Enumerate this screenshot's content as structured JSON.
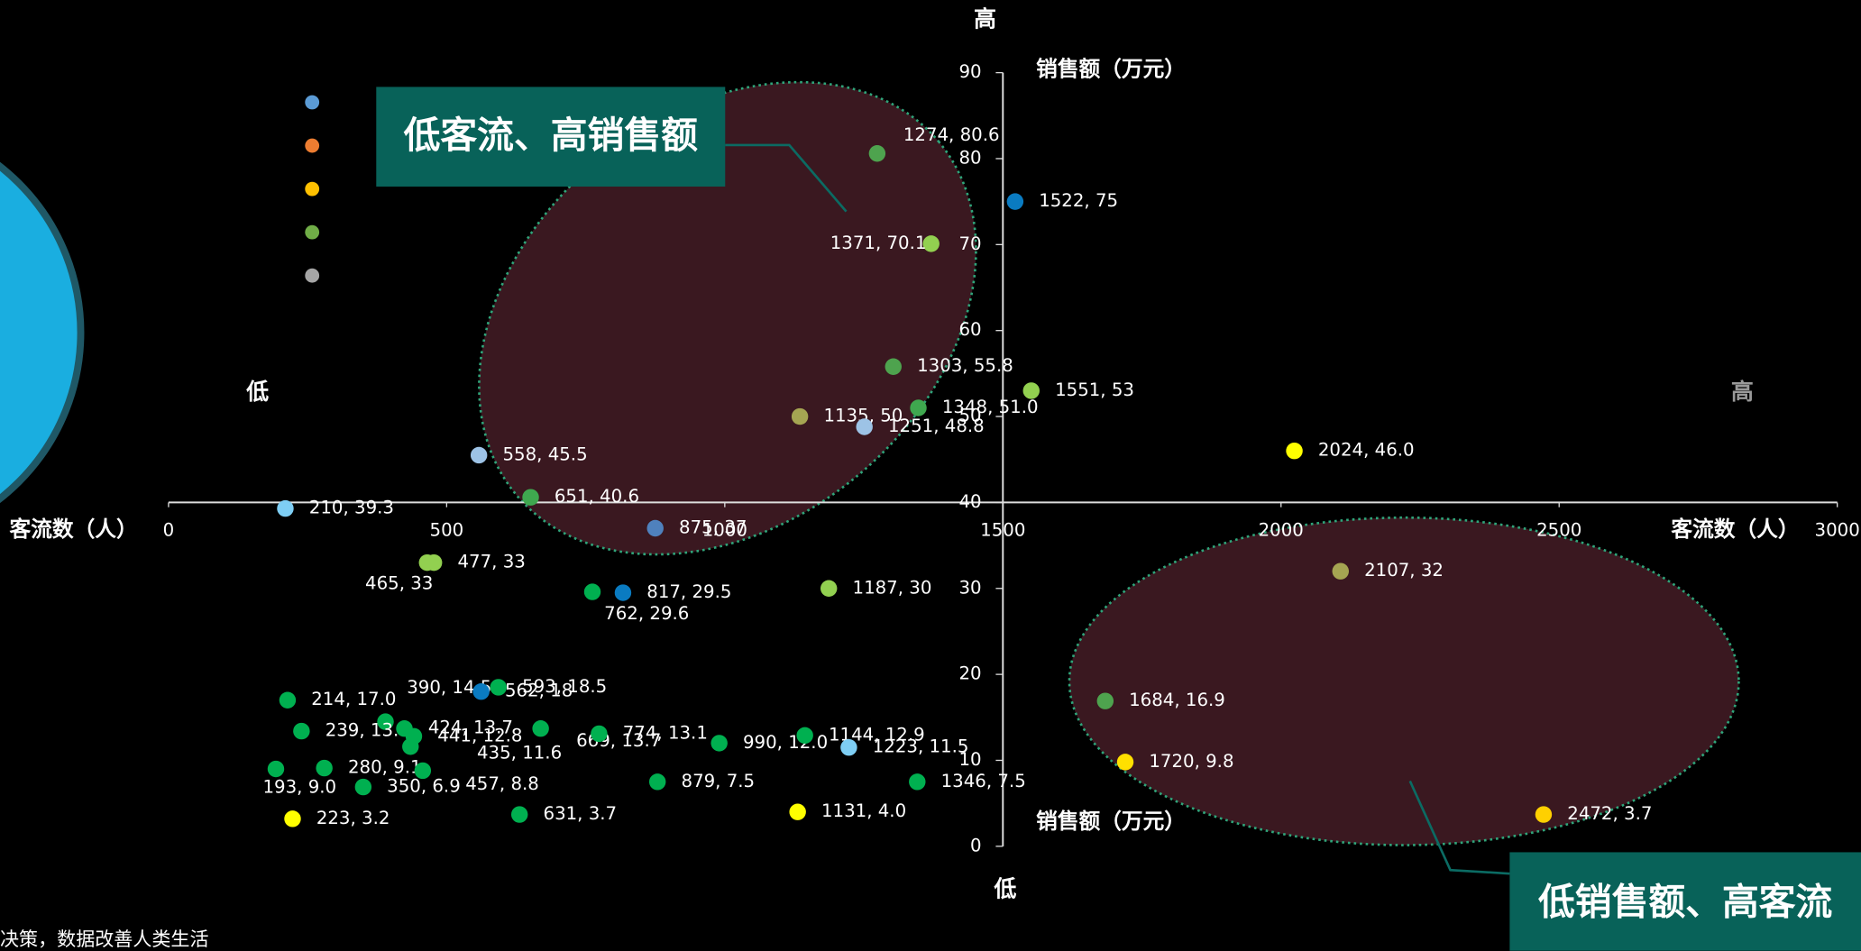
{
  "chart_data": {
    "type": "scatter",
    "x_label": "客流数（人）",
    "y_label": "销售额（万元）",
    "quadrant_labels": {
      "top": "高",
      "bottom": "低",
      "left": "低",
      "right": "高"
    },
    "callouts": [
      "低客流、高销售额",
      "低销售额、高客流"
    ],
    "xlim": [
      0,
      3000
    ],
    "ylim": [
      0,
      90
    ],
    "xticks": [
      0,
      500,
      1000,
      1500,
      2000,
      2500,
      3000
    ],
    "yticks": [
      0,
      10,
      20,
      30,
      40,
      50,
      60,
      70,
      80,
      90
    ],
    "x_axis_at": 40,
    "y_axis_at": 1500,
    "legend_colors": [
      "#5b9bd5",
      "#ed7d31",
      "#ffc000",
      "#70ad47",
      "#a5a5a5"
    ],
    "series": [
      {
        "x": [
          1274,
          1371,
          1522,
          1303,
          1551,
          1135,
          1348,
          1251,
          2024,
          558,
          651,
          210,
          875,
          477,
          465,
          2107,
          817,
          762,
          1187,
          214,
          390,
          593,
          562,
          239,
          424,
          441,
          435,
          669,
          774,
          990,
          1144,
          1223,
          193,
          280,
          350,
          457,
          879,
          1346,
          223,
          631,
          1131,
          1684,
          1720,
          2472
        ],
        "values": [
          80.6,
          70.1,
          75,
          55.8,
          53,
          50,
          51.0,
          48.8,
          46.0,
          45.5,
          40.6,
          39.3,
          37,
          33,
          33,
          32,
          29.5,
          29.6,
          30,
          17.0,
          14.5,
          18.5,
          18,
          13.4,
          13.7,
          12.8,
          11.6,
          13.7,
          13.1,
          12.0,
          12.9,
          11.5,
          9.0,
          9.1,
          6.9,
          8.8,
          7.5,
          7.5,
          3.2,
          3.7,
          4.0,
          16.9,
          9.8,
          3.7
        ],
        "value_labels": [
          "1274, 80.6",
          "1371, 70.1",
          "1522, 75",
          "1303, 55.8",
          "1551, 53",
          "1135, 50",
          "1348, 51.0",
          "1251, 48.8",
          "2024, 46.0",
          "558, 45.5",
          "651, 40.6",
          "210, 39.3",
          "875, 37",
          "477, 33",
          "465, 33",
          "2107, 32",
          "817, 29.5",
          "762, 29.6",
          "1187, 30",
          "214, 17.0",
          "390, 14.5",
          "593, 18.5",
          "562, 18",
          "239, 13.4",
          "424, 13.7",
          "441, 12.8",
          "435, 11.6",
          "669, 13.7",
          "774, 13.1",
          "990, 12.0",
          "1144, 12.9",
          "1223, 11.5",
          "193, 9.0",
          "280, 9.1",
          "350, 6.9",
          "457, 8.8",
          "879, 7.5",
          "1346, 7.5",
          "223, 3.2",
          "631, 3.7",
          "1131, 4.0",
          "1684, 16.9",
          "1720, 9.8",
          "2472, 3.7"
        ],
        "colors": [
          "#4ea34e",
          "#92d050",
          "#0a7bc1",
          "#4ea34e",
          "#92d050",
          "#a5a552",
          "#3fa84f",
          "#9dc3e6",
          "#ffff00",
          "#9dc3e6",
          "#3fa84f",
          "#7ecef4",
          "#4f81bd",
          "#92d050",
          "#92d050",
          "#a5a552",
          "#0a7bc1",
          "#00b050",
          "#92d050",
          "#00b050",
          "#00b050",
          "#00b050",
          "#0a7bc1",
          "#00b050",
          "#00b050",
          "#00b050",
          "#00b050",
          "#00b050",
          "#00b050",
          "#00b050",
          "#00b050",
          "#7ecef4",
          "#00b050",
          "#00b050",
          "#00b050",
          "#00b050",
          "#00b050",
          "#00b050",
          "#ffff00",
          "#00b050",
          "#ffff00",
          "#4ea34e",
          "#ffe000",
          "#ffd000"
        ]
      }
    ]
  },
  "footer": "决策，数据改善人类生活"
}
